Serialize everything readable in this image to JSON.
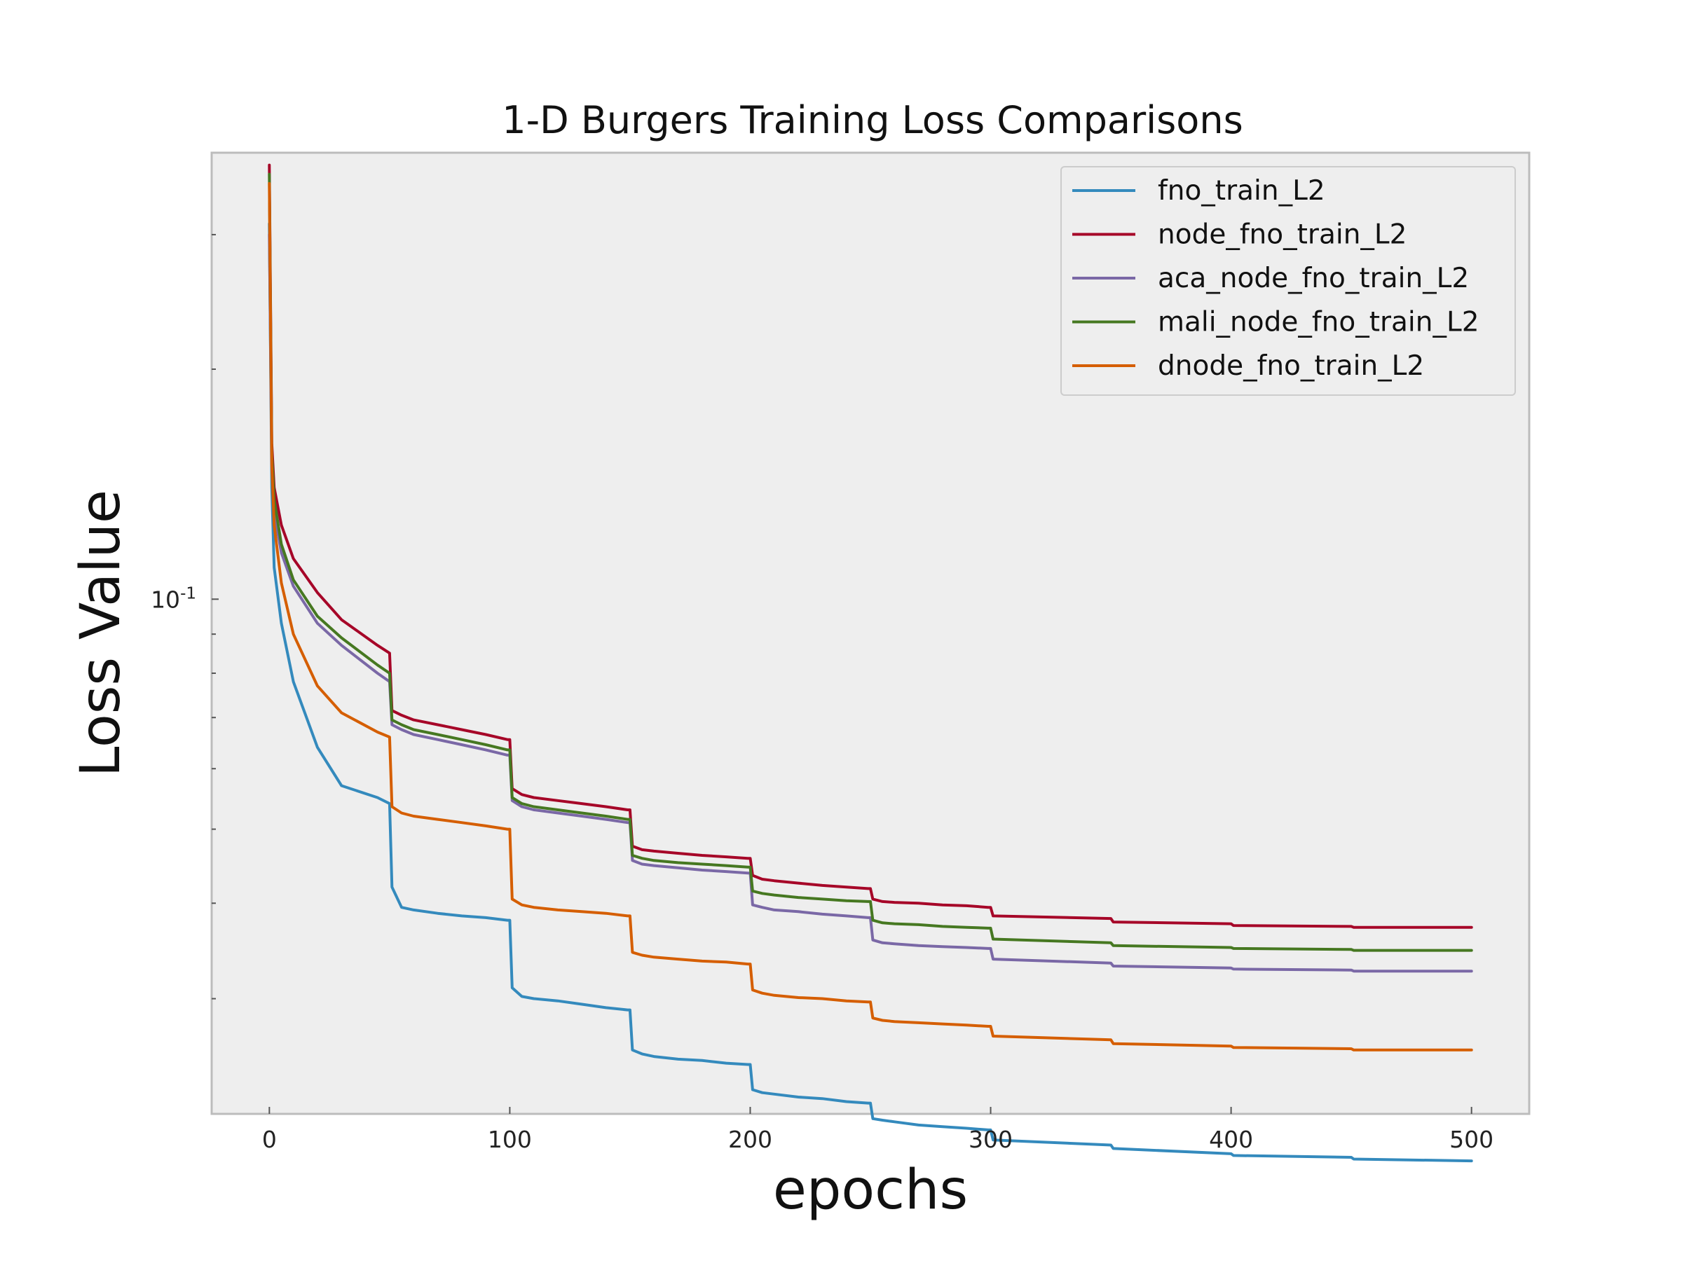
{
  "chart_data": {
    "type": "line",
    "title": "1-D Burgers Training Loss Comparisons",
    "xlabel": "epochs",
    "ylabel": "Loss Value",
    "yscale": "log",
    "xlim": [
      -24,
      524
    ],
    "ylim": [
      0.0212,
      0.384
    ],
    "grid": false,
    "legend_position": "top-right",
    "x_ticks": [
      0,
      100,
      200,
      300,
      400,
      500
    ],
    "y_tick_labels": [
      {
        "value": 0.1,
        "base": "10",
        "exp": "-1"
      }
    ],
    "y_minor_ticks": [
      0.03,
      0.04,
      0.05,
      0.06,
      0.07,
      0.08,
      0.09,
      0.2,
      0.3
    ],
    "series": [
      {
        "name": "fno_train_L2",
        "color": "#348ABD",
        "x": [
          0,
          1,
          2,
          5,
          10,
          20,
          30,
          45,
          50,
          51,
          55,
          60,
          70,
          80,
          90,
          99,
          100,
          101,
          105,
          110,
          120,
          130,
          140,
          149,
          150,
          151,
          155,
          160,
          170,
          180,
          190,
          199,
          200,
          201,
          205,
          210,
          220,
          230,
          240,
          249,
          250,
          251,
          255,
          260,
          270,
          280,
          290,
          299,
          300,
          301,
          350,
          351,
          400,
          401,
          450,
          451,
          500
        ],
        "y": [
          0.31,
          0.14,
          0.11,
          0.093,
          0.078,
          0.064,
          0.057,
          0.055,
          0.054,
          0.042,
          0.0395,
          0.0392,
          0.0388,
          0.0385,
          0.0383,
          0.038,
          0.038,
          0.031,
          0.0302,
          0.03,
          0.0298,
          0.0295,
          0.0292,
          0.029,
          0.029,
          0.0257,
          0.0254,
          0.0252,
          0.025,
          0.0249,
          0.0247,
          0.0246,
          0.0246,
          0.0228,
          0.0226,
          0.0225,
          0.0223,
          0.0222,
          0.022,
          0.0219,
          0.0219,
          0.0209,
          0.0208,
          0.0207,
          0.0205,
          0.0204,
          0.0203,
          0.0202,
          0.0202,
          0.0196,
          0.0193,
          0.0191,
          0.0188,
          0.0187,
          0.0186,
          0.0185,
          0.0184
        ]
      },
      {
        "name": "node_fno_train_L2",
        "color": "#A60628",
        "x": [
          0,
          1,
          2,
          5,
          10,
          20,
          30,
          45,
          50,
          51,
          55,
          60,
          70,
          80,
          90,
          99,
          100,
          101,
          105,
          110,
          120,
          130,
          140,
          149,
          150,
          151,
          155,
          160,
          170,
          180,
          190,
          199,
          200,
          201,
          205,
          210,
          220,
          230,
          240,
          249,
          250,
          251,
          255,
          260,
          270,
          280,
          290,
          299,
          300,
          301,
          350,
          351,
          400,
          401,
          450,
          451,
          500
        ],
        "y": [
          0.37,
          0.16,
          0.14,
          0.125,
          0.113,
          0.102,
          0.094,
          0.087,
          0.085,
          0.0715,
          0.0705,
          0.0695,
          0.0685,
          0.0675,
          0.0665,
          0.0655,
          0.0655,
          0.0565,
          0.0555,
          0.055,
          0.0545,
          0.054,
          0.0535,
          0.053,
          0.053,
          0.0475,
          0.047,
          0.0468,
          0.0465,
          0.0462,
          0.046,
          0.0458,
          0.0458,
          0.0435,
          0.043,
          0.0428,
          0.0425,
          0.0422,
          0.042,
          0.0418,
          0.0418,
          0.0405,
          0.0402,
          0.0401,
          0.04,
          0.0398,
          0.0397,
          0.0395,
          0.0395,
          0.0385,
          0.0382,
          0.0378,
          0.0376,
          0.0374,
          0.0373,
          0.0372,
          0.0372
        ]
      },
      {
        "name": "aca_node_fno_train_L2",
        "color": "#7A68A6",
        "x": [
          0,
          1,
          2,
          5,
          10,
          20,
          30,
          45,
          50,
          51,
          55,
          60,
          70,
          80,
          90,
          99,
          100,
          101,
          105,
          110,
          120,
          130,
          140,
          149,
          150,
          151,
          155,
          160,
          170,
          180,
          190,
          199,
          200,
          201,
          205,
          210,
          220,
          230,
          240,
          249,
          250,
          251,
          255,
          260,
          270,
          280,
          290,
          299,
          300,
          301,
          350,
          351,
          400,
          401,
          450,
          451,
          500
        ],
        "y": [
          0.3,
          0.15,
          0.13,
          0.115,
          0.104,
          0.093,
          0.087,
          0.08,
          0.078,
          0.0685,
          0.0675,
          0.0665,
          0.0655,
          0.0645,
          0.0635,
          0.0625,
          0.0625,
          0.0545,
          0.0535,
          0.053,
          0.0525,
          0.052,
          0.0515,
          0.051,
          0.051,
          0.0455,
          0.045,
          0.0448,
          0.0445,
          0.0442,
          0.044,
          0.0438,
          0.0438,
          0.0398,
          0.0395,
          0.0392,
          0.039,
          0.0387,
          0.0385,
          0.0383,
          0.0383,
          0.0358,
          0.0355,
          0.0354,
          0.0352,
          0.0351,
          0.035,
          0.0349,
          0.0349,
          0.0338,
          0.0334,
          0.0331,
          0.0329,
          0.0328,
          0.0327,
          0.0326,
          0.0326
        ]
      },
      {
        "name": "mali_node_fno_train_L2",
        "color": "#467821",
        "x": [
          0,
          1,
          2,
          5,
          10,
          20,
          30,
          45,
          50,
          51,
          55,
          60,
          70,
          80,
          90,
          99,
          100,
          101,
          105,
          110,
          120,
          130,
          140,
          149,
          150,
          151,
          155,
          160,
          170,
          180,
          190,
          199,
          200,
          201,
          205,
          210,
          220,
          230,
          240,
          249,
          250,
          251,
          255,
          260,
          270,
          280,
          290,
          299,
          300,
          301,
          350,
          351,
          400,
          401,
          450,
          451,
          500
        ],
        "y": [
          0.36,
          0.155,
          0.135,
          0.118,
          0.106,
          0.095,
          0.089,
          0.082,
          0.08,
          0.0695,
          0.0685,
          0.0675,
          0.0665,
          0.0655,
          0.0645,
          0.0635,
          0.0635,
          0.055,
          0.054,
          0.0535,
          0.053,
          0.0525,
          0.052,
          0.0515,
          0.0515,
          0.0462,
          0.0458,
          0.0455,
          0.0452,
          0.045,
          0.0448,
          0.0446,
          0.0446,
          0.0415,
          0.0412,
          0.041,
          0.0407,
          0.0405,
          0.0403,
          0.0402,
          0.0402,
          0.038,
          0.0377,
          0.0376,
          0.0375,
          0.0373,
          0.0372,
          0.0371,
          0.0371,
          0.0359,
          0.0355,
          0.0352,
          0.035,
          0.0349,
          0.0348,
          0.0347,
          0.0347
        ]
      },
      {
        "name": "dnode_fno_train_L2",
        "color": "#D55E00",
        "x": [
          0,
          1,
          2,
          5,
          10,
          20,
          30,
          45,
          50,
          51,
          55,
          60,
          70,
          80,
          90,
          99,
          100,
          101,
          105,
          110,
          120,
          130,
          140,
          149,
          150,
          151,
          155,
          160,
          170,
          180,
          190,
          199,
          200,
          201,
          205,
          210,
          220,
          230,
          240,
          249,
          250,
          251,
          255,
          260,
          270,
          280,
          290,
          299,
          300,
          301,
          350,
          351,
          400,
          401,
          450,
          451,
          500
        ],
        "y": [
          0.35,
          0.15,
          0.125,
          0.105,
          0.09,
          0.077,
          0.071,
          0.067,
          0.066,
          0.0535,
          0.0525,
          0.052,
          0.0515,
          0.051,
          0.0505,
          0.05,
          0.05,
          0.0405,
          0.0398,
          0.0395,
          0.0392,
          0.039,
          0.0388,
          0.0385,
          0.0385,
          0.0345,
          0.0342,
          0.034,
          0.0338,
          0.0336,
          0.0335,
          0.0333,
          0.0333,
          0.0308,
          0.0305,
          0.0303,
          0.0301,
          0.03,
          0.0298,
          0.0297,
          0.0297,
          0.0283,
          0.0281,
          0.028,
          0.0279,
          0.0278,
          0.0277,
          0.0276,
          0.0276,
          0.0268,
          0.0265,
          0.0262,
          0.026,
          0.0259,
          0.0258,
          0.0257,
          0.0257
        ]
      }
    ]
  }
}
